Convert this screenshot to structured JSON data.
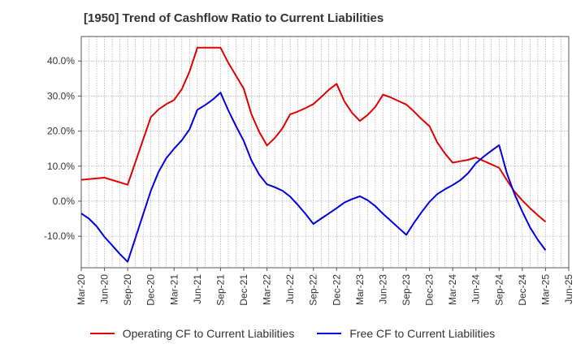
{
  "chart_data": {
    "type": "line",
    "title": "[1950]  Trend of Cashflow Ratio to Current Liabilities",
    "x_tick_labels": [
      "Mar-20",
      "Jun-20",
      "Sep-20",
      "Dec-20",
      "Mar-21",
      "Jun-21",
      "Sep-21",
      "Dec-21",
      "Mar-22",
      "Jun-22",
      "Sep-22",
      "Dec-22",
      "Mar-23",
      "Jun-23",
      "Sep-23",
      "Dec-23",
      "Mar-24",
      "Jun-24",
      "Sep-24",
      "Dec-24",
      "Mar-25",
      "Jun-25"
    ],
    "y_ticks": [
      -10,
      0,
      10,
      20,
      30,
      40
    ],
    "y_tick_labels": [
      "-10.0%",
      "0.0%",
      "10.0%",
      "20.0%",
      "30.0%",
      "40.0%"
    ],
    "ylim": [
      -19,
      47
    ],
    "grid": true,
    "legend_position": "bottom",
    "series": [
      {
        "name": "Operating CF to Current Liabilities",
        "color": "#e00000",
        "values": [
          [
            0,
            6.1
          ],
          [
            3,
            6.7
          ],
          [
            6,
            4.7
          ],
          [
            9,
            24.0
          ],
          [
            10,
            26.2
          ],
          [
            11,
            27.7
          ],
          [
            12,
            28.9
          ],
          [
            13,
            32.0
          ],
          [
            14,
            37.0
          ],
          [
            15,
            43.8
          ],
          [
            16,
            43.8
          ],
          [
            17,
            43.8
          ],
          [
            18,
            43.8
          ],
          [
            19,
            39.5
          ],
          [
            20,
            35.8
          ],
          [
            21,
            32.1
          ],
          [
            22,
            24.8
          ],
          [
            23,
            19.8
          ],
          [
            24,
            15.9
          ],
          [
            25,
            18.0
          ],
          [
            26,
            20.8
          ],
          [
            27,
            24.8
          ],
          [
            28,
            25.6
          ],
          [
            29,
            26.6
          ],
          [
            30,
            27.7
          ],
          [
            31,
            29.7
          ],
          [
            32,
            31.8
          ],
          [
            33,
            33.5
          ],
          [
            34,
            28.5
          ],
          [
            35,
            25.2
          ],
          [
            36,
            22.9
          ],
          [
            37,
            24.6
          ],
          [
            38,
            26.9
          ],
          [
            39,
            30.4
          ],
          [
            40,
            29.6
          ],
          [
            41,
            28.6
          ],
          [
            42,
            27.6
          ],
          [
            43,
            25.6
          ],
          [
            44,
            23.4
          ],
          [
            45,
            21.4
          ],
          [
            46,
            16.8
          ],
          [
            47,
            13.6
          ],
          [
            48,
            11.0
          ],
          [
            49,
            11.4
          ],
          [
            50,
            11.8
          ],
          [
            51,
            12.5
          ],
          [
            52,
            11.5
          ],
          [
            53,
            10.5
          ],
          [
            54,
            9.5
          ],
          [
            55,
            6.0
          ],
          [
            56,
            2.7
          ],
          [
            57,
            0.2
          ],
          [
            58,
            -2.0
          ],
          [
            59,
            -4.0
          ],
          [
            60,
            -5.9
          ]
        ]
      },
      {
        "name": "Free CF to Current Liabilities",
        "color": "#0000e0",
        "values": [
          [
            0,
            -3.5
          ],
          [
            1,
            -5.0
          ],
          [
            2,
            -7.2
          ],
          [
            3,
            -10.2
          ],
          [
            4,
            -12.6
          ],
          [
            5,
            -15.1
          ],
          [
            6,
            -17.3
          ],
          [
            9,
            3.0
          ],
          [
            10,
            8.4
          ],
          [
            11,
            12.3
          ],
          [
            12,
            15.0
          ],
          [
            13,
            17.4
          ],
          [
            14,
            20.5
          ],
          [
            15,
            26.1
          ],
          [
            16,
            27.4
          ],
          [
            17,
            29.0
          ],
          [
            18,
            31.0
          ],
          [
            19,
            25.9
          ],
          [
            20,
            21.4
          ],
          [
            21,
            17.2
          ],
          [
            22,
            11.6
          ],
          [
            23,
            7.6
          ],
          [
            24,
            4.8
          ],
          [
            25,
            4.0
          ],
          [
            26,
            3.0
          ],
          [
            27,
            1.3
          ],
          [
            28,
            -1.1
          ],
          [
            29,
            -3.7
          ],
          [
            30,
            -6.5
          ],
          [
            31,
            -5.0
          ],
          [
            32,
            -3.5
          ],
          [
            33,
            -2.0
          ],
          [
            34,
            -0.4
          ],
          [
            35,
            0.6
          ],
          [
            36,
            1.4
          ],
          [
            37,
            0.3
          ],
          [
            38,
            -1.4
          ],
          [
            39,
            -3.6
          ],
          [
            40,
            -5.6
          ],
          [
            41,
            -7.6
          ],
          [
            42,
            -9.6
          ],
          [
            43,
            -6.2
          ],
          [
            44,
            -3.1
          ],
          [
            45,
            -0.2
          ],
          [
            46,
            2.0
          ],
          [
            47,
            3.4
          ],
          [
            48,
            4.6
          ],
          [
            49,
            6.0
          ],
          [
            50,
            8.0
          ],
          [
            51,
            10.8
          ],
          [
            52,
            12.7
          ],
          [
            53,
            14.4
          ],
          [
            54,
            16.0
          ],
          [
            55,
            8.0
          ],
          [
            56,
            2.0
          ],
          [
            57,
            -3.0
          ],
          [
            58,
            -7.5
          ],
          [
            59,
            -11.0
          ],
          [
            60,
            -14.0
          ]
        ]
      }
    ]
  }
}
